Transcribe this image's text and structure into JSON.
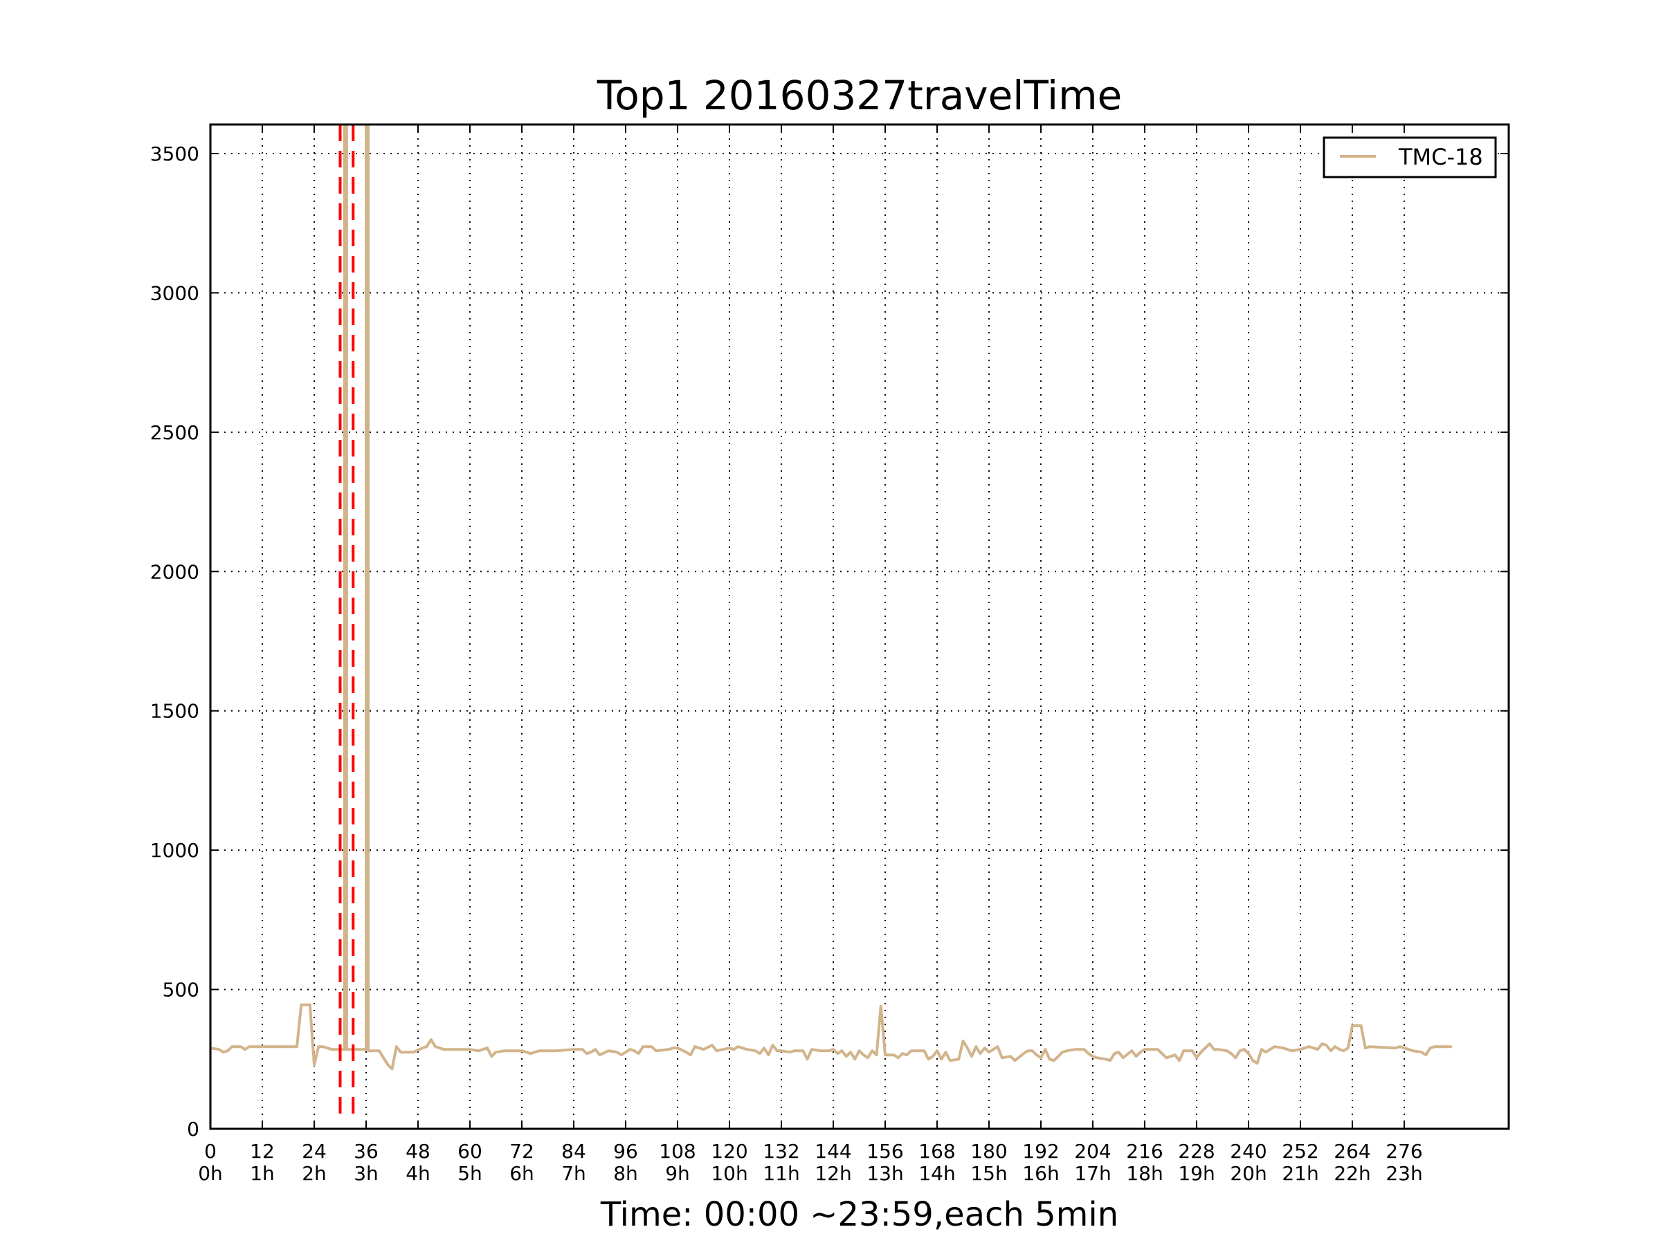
{
  "chart_data": {
    "type": "line",
    "title": "Top1 20160327travelTime",
    "xlabel": "Time: 00:00 ~23:59,each 5min",
    "ylabel": "",
    "xlim": [
      0,
      300
    ],
    "ylim": [
      0,
      3600
    ],
    "grid": true,
    "legend_position": "top-right",
    "x_ticks": [
      0,
      12,
      24,
      36,
      48,
      60,
      72,
      84,
      96,
      108,
      120,
      132,
      144,
      156,
      168,
      180,
      192,
      204,
      216,
      228,
      240,
      252,
      264,
      276
    ],
    "x_tick_labels": [
      "0",
      "12",
      "24",
      "36",
      "48",
      "60",
      "72",
      "84",
      "96",
      "108",
      "120",
      "132",
      "144",
      "156",
      "168",
      "180",
      "192",
      "204",
      "216",
      "228",
      "240",
      "252",
      "264",
      "276"
    ],
    "x_tick_sublabels": [
      "0h",
      "1h",
      "2h",
      "3h",
      "4h",
      "5h",
      "6h",
      "7h",
      "8h",
      "9h",
      "10h",
      "11h",
      "12h",
      "13h",
      "14h",
      "15h",
      "16h",
      "17h",
      "18h",
      "19h",
      "20h",
      "21h",
      "22h",
      "23h"
    ],
    "y_ticks": [
      0,
      500,
      1000,
      1500,
      2000,
      2500,
      3000,
      3500
    ],
    "y_tick_labels": [
      "0",
      "500",
      "1000",
      "1500",
      "2000",
      "2500",
      "3000",
      "3500"
    ],
    "series": [
      {
        "name": "TMC-18",
        "color": "#d2b48c",
        "points": [
          [
            0,
            290
          ],
          [
            2,
            285
          ],
          [
            3,
            275
          ],
          [
            4,
            280
          ],
          [
            5,
            295
          ],
          [
            7,
            295
          ],
          [
            8,
            285
          ],
          [
            9,
            295
          ],
          [
            12,
            295
          ],
          [
            18,
            295
          ],
          [
            20,
            295
          ],
          [
            21,
            445
          ],
          [
            23,
            445
          ],
          [
            24,
            230
          ],
          [
            25,
            295
          ],
          [
            26,
            295
          ],
          [
            28,
            285
          ],
          [
            30,
            285
          ],
          [
            31,
            285
          ],
          [
            31,
            3600
          ],
          [
            31.5,
            3600
          ],
          [
            31.5,
            285
          ],
          [
            33,
            285
          ],
          [
            36,
            285
          ],
          [
            36,
            3600
          ],
          [
            36.5,
            3600
          ],
          [
            36.5,
            280
          ],
          [
            39,
            280
          ],
          [
            41,
            230
          ],
          [
            42,
            215
          ],
          [
            43,
            295
          ],
          [
            44,
            275
          ],
          [
            47,
            275
          ],
          [
            49,
            290
          ],
          [
            50,
            295
          ],
          [
            51,
            320
          ],
          [
            52,
            295
          ],
          [
            54,
            285
          ],
          [
            60,
            285
          ],
          [
            62,
            280
          ],
          [
            63,
            285
          ],
          [
            64,
            290
          ],
          [
            65,
            260
          ],
          [
            66,
            275
          ],
          [
            68,
            280
          ],
          [
            72,
            280
          ],
          [
            73,
            275
          ],
          [
            74,
            270
          ],
          [
            76,
            280
          ],
          [
            80,
            280
          ],
          [
            84,
            285
          ],
          [
            86,
            285
          ],
          [
            87,
            270
          ],
          [
            88,
            275
          ],
          [
            89,
            285
          ],
          [
            90,
            265
          ],
          [
            92,
            280
          ],
          [
            94,
            275
          ],
          [
            95,
            265
          ],
          [
            97,
            285
          ],
          [
            98,
            280
          ],
          [
            99,
            270
          ],
          [
            100,
            295
          ],
          [
            102,
            295
          ],
          [
            103,
            280
          ],
          [
            106,
            285
          ],
          [
            107,
            290
          ],
          [
            108,
            290
          ],
          [
            110,
            275
          ],
          [
            111,
            265
          ],
          [
            112,
            295
          ],
          [
            114,
            285
          ],
          [
            116,
            300
          ],
          [
            117,
            280
          ],
          [
            120,
            290
          ],
          [
            121,
            285
          ],
          [
            122,
            295
          ],
          [
            124,
            285
          ],
          [
            126,
            280
          ],
          [
            127,
            270
          ],
          [
            128,
            290
          ],
          [
            129,
            265
          ],
          [
            130,
            300
          ],
          [
            131,
            280
          ],
          [
            132,
            280
          ],
          [
            134,
            275
          ],
          [
            135,
            280
          ],
          [
            137,
            280
          ],
          [
            138,
            250
          ],
          [
            139,
            285
          ],
          [
            141,
            280
          ],
          [
            143,
            280
          ],
          [
            144,
            285
          ],
          [
            145,
            270
          ],
          [
            146,
            280
          ],
          [
            147,
            260
          ],
          [
            148,
            275
          ],
          [
            149,
            250
          ],
          [
            150,
            280
          ],
          [
            151,
            265
          ],
          [
            152,
            255
          ],
          [
            153,
            280
          ],
          [
            154,
            265
          ],
          [
            155,
            440
          ],
          [
            156,
            265
          ],
          [
            158,
            265
          ],
          [
            159,
            255
          ],
          [
            160,
            270
          ],
          [
            161,
            265
          ],
          [
            162,
            280
          ],
          [
            165,
            280
          ],
          [
            166,
            250
          ],
          [
            167,
            260
          ],
          [
            168,
            280
          ],
          [
            169,
            250
          ],
          [
            170,
            275
          ],
          [
            171,
            245
          ],
          [
            173,
            250
          ],
          [
            174,
            315
          ],
          [
            175,
            290
          ],
          [
            176,
            260
          ],
          [
            177,
            295
          ],
          [
            178,
            270
          ],
          [
            179,
            290
          ],
          [
            180,
            275
          ],
          [
            181,
            285
          ],
          [
            182,
            295
          ],
          [
            183,
            255
          ],
          [
            185,
            260
          ],
          [
            186,
            245
          ],
          [
            188,
            270
          ],
          [
            189,
            280
          ],
          [
            190,
            280
          ],
          [
            191,
            265
          ],
          [
            192,
            255
          ],
          [
            193,
            285
          ],
          [
            194,
            250
          ],
          [
            195,
            245
          ],
          [
            197,
            275
          ],
          [
            198,
            280
          ],
          [
            200,
            285
          ],
          [
            202,
            285
          ],
          [
            203,
            270
          ],
          [
            204,
            260
          ],
          [
            205,
            255
          ],
          [
            207,
            250
          ],
          [
            208,
            245
          ],
          [
            209,
            270
          ],
          [
            210,
            275
          ],
          [
            211,
            255
          ],
          [
            213,
            280
          ],
          [
            214,
            260
          ],
          [
            215,
            275
          ],
          [
            216,
            285
          ],
          [
            219,
            285
          ],
          [
            220,
            270
          ],
          [
            221,
            255
          ],
          [
            222,
            260
          ],
          [
            223,
            265
          ],
          [
            224,
            245
          ],
          [
            225,
            280
          ],
          [
            227,
            280
          ],
          [
            228,
            255
          ],
          [
            229,
            275
          ],
          [
            230,
            290
          ],
          [
            231,
            305
          ],
          [
            232,
            285
          ],
          [
            233,
            285
          ],
          [
            235,
            280
          ],
          [
            236,
            270
          ],
          [
            237,
            255
          ],
          [
            238,
            280
          ],
          [
            239,
            285
          ],
          [
            240,
            270
          ],
          [
            241,
            245
          ],
          [
            242,
            235
          ],
          [
            243,
            285
          ],
          [
            244,
            275
          ],
          [
            246,
            295
          ],
          [
            248,
            290
          ],
          [
            250,
            280
          ],
          [
            252,
            285
          ],
          [
            254,
            295
          ],
          [
            255,
            290
          ],
          [
            256,
            285
          ],
          [
            257,
            305
          ],
          [
            258,
            300
          ],
          [
            259,
            280
          ],
          [
            260,
            295
          ],
          [
            261,
            285
          ],
          [
            262,
            280
          ],
          [
            263,
            290
          ],
          [
            264,
            370
          ],
          [
            266,
            370
          ],
          [
            267,
            290
          ],
          [
            268,
            295
          ],
          [
            274,
            290
          ],
          [
            275,
            295
          ],
          [
            276,
            290
          ],
          [
            278,
            280
          ],
          [
            280,
            275
          ],
          [
            281,
            265
          ],
          [
            282,
            290
          ],
          [
            283,
            295
          ],
          [
            287,
            295
          ]
        ]
      }
    ],
    "vertical_markers": [
      {
        "x": 30,
        "color": "#ff0000",
        "style": "dashed"
      },
      {
        "x": 33,
        "color": "#ff0000",
        "style": "dashed"
      }
    ]
  }
}
